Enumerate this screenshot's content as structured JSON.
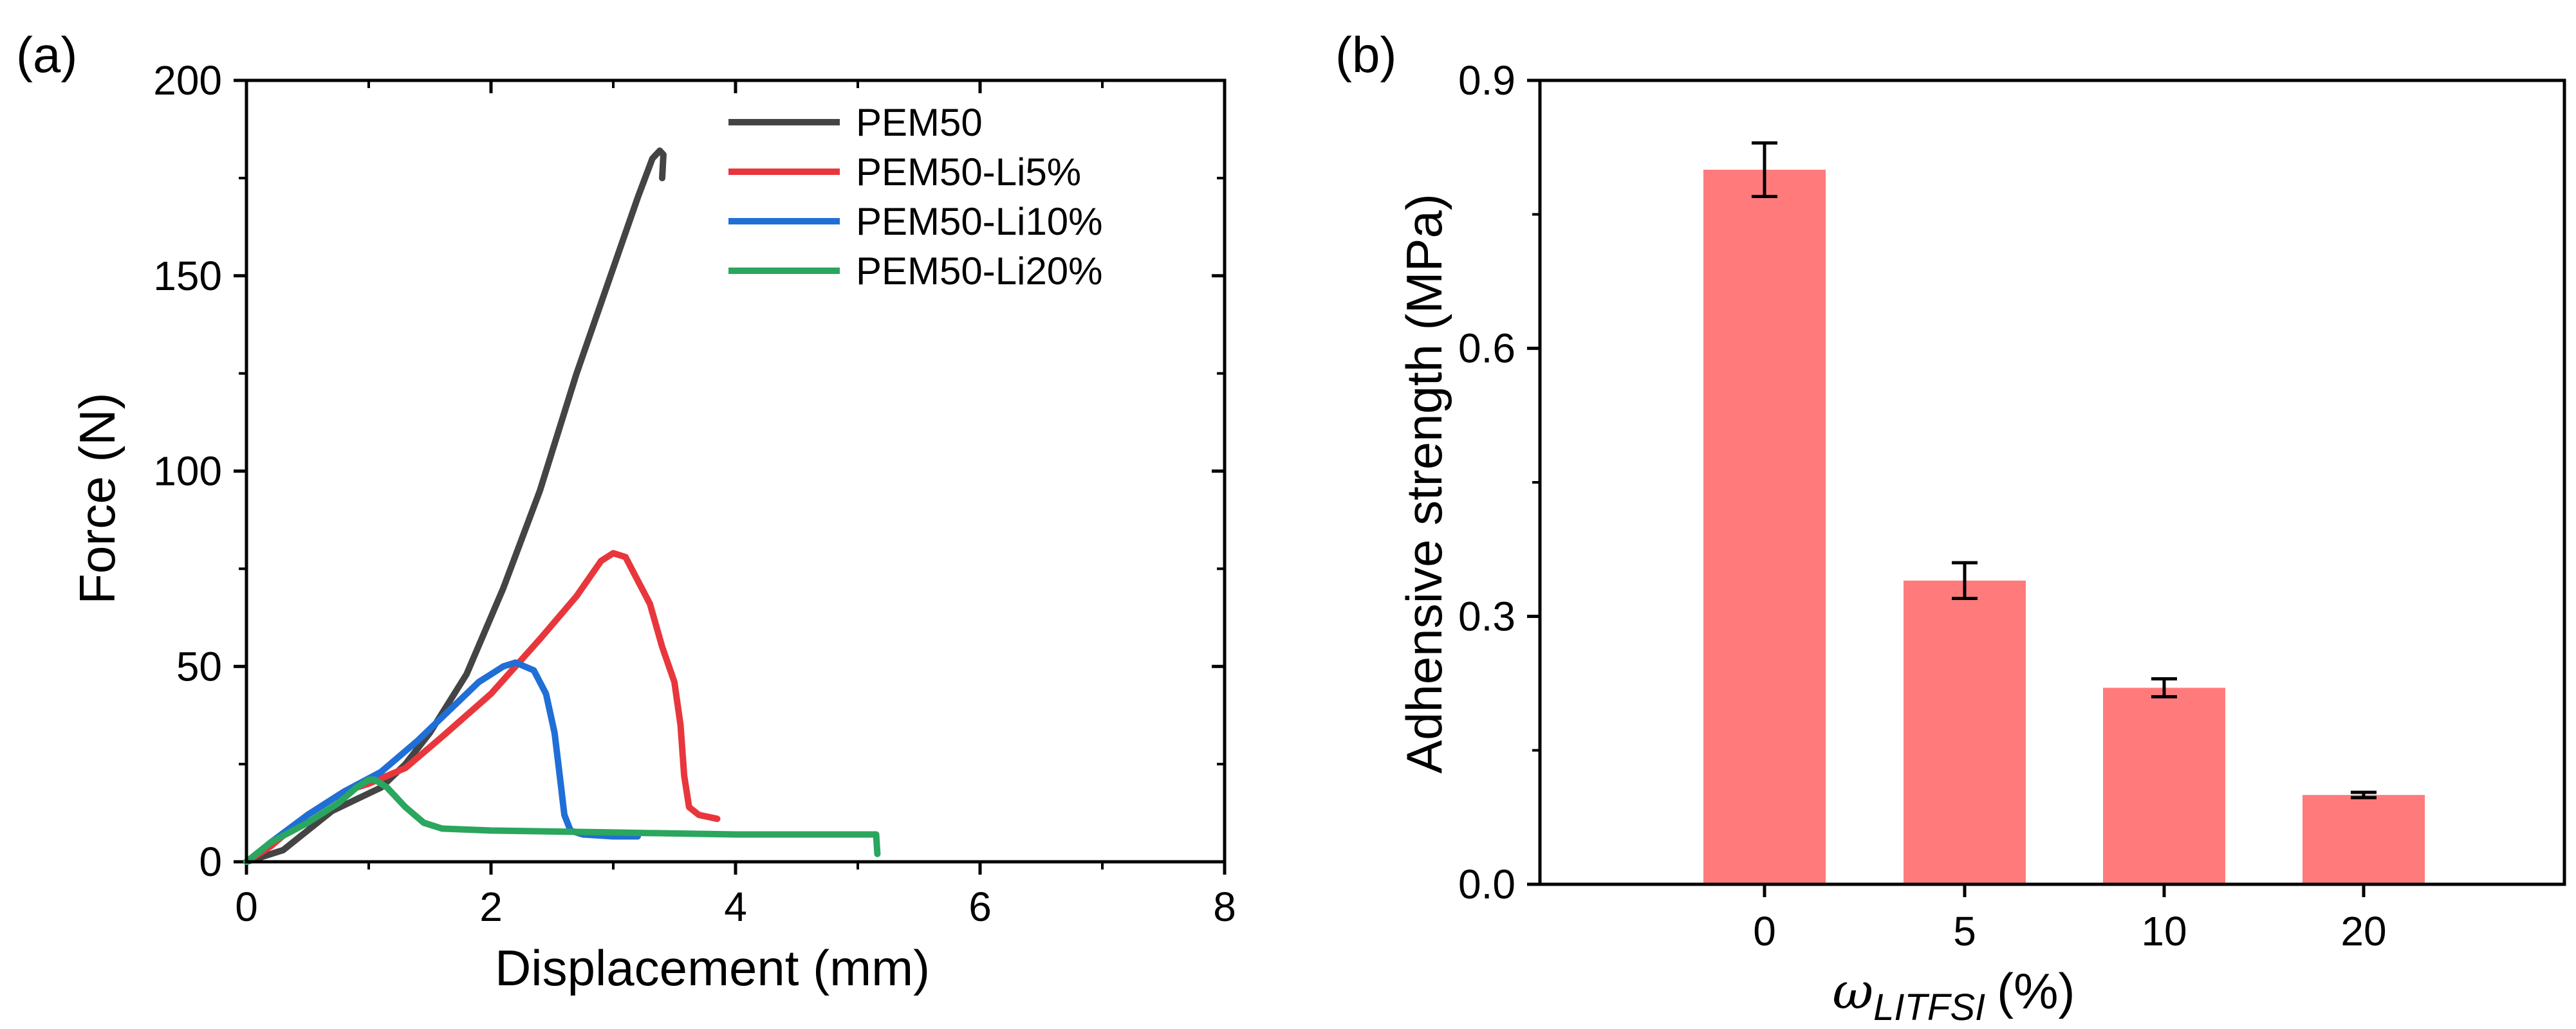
{
  "figure": {
    "background": "#ffffff"
  },
  "chart_data": [
    {
      "panel_label": "(a)",
      "type": "line",
      "title": "",
      "xlabel": "Displacement (mm)",
      "ylabel": "Force (N)",
      "xlim": [
        0,
        8
      ],
      "ylim": [
        0,
        200
      ],
      "xticks": [
        0,
        2,
        4,
        6,
        8
      ],
      "xtick_labels": [
        "0",
        "2",
        "4",
        "6",
        "8"
      ],
      "yticks": [
        0,
        50,
        100,
        150,
        200
      ],
      "ytick_labels": [
        "0",
        "50",
        "100",
        "150",
        "200"
      ],
      "grid": false,
      "legend_position": "top-center",
      "series": [
        {
          "name": "PEM50",
          "color": "#444444",
          "points": [
            [
              0,
              0
            ],
            [
              0.3,
              3
            ],
            [
              0.5,
              8
            ],
            [
              0.7,
              13
            ],
            [
              0.9,
              16
            ],
            [
              1.1,
              19
            ],
            [
              1.3,
              25
            ],
            [
              1.5,
              33
            ],
            [
              1.8,
              48
            ],
            [
              2.1,
              70
            ],
            [
              2.4,
              95
            ],
            [
              2.7,
              125
            ],
            [
              3.0,
              152
            ],
            [
              3.2,
              170
            ],
            [
              3.32,
              180
            ],
            [
              3.38,
              182
            ],
            [
              3.41,
              181
            ],
            [
              3.4,
              175
            ]
          ]
        },
        {
          "name": "PEM50-Li5%",
          "color": "#e8373c",
          "points": [
            [
              0,
              0
            ],
            [
              0.2,
              4
            ],
            [
              0.5,
              12
            ],
            [
              0.8,
              18
            ],
            [
              1.0,
              20
            ],
            [
              1.3,
              24
            ],
            [
              1.6,
              32
            ],
            [
              2.0,
              43
            ],
            [
              2.4,
              57
            ],
            [
              2.7,
              68
            ],
            [
              2.9,
              77
            ],
            [
              3.0,
              79
            ],
            [
              3.1,
              78
            ],
            [
              3.2,
              72
            ],
            [
              3.3,
              66
            ],
            [
              3.4,
              55
            ],
            [
              3.5,
              46
            ],
            [
              3.55,
              35
            ],
            [
              3.58,
              22
            ],
            [
              3.62,
              14
            ],
            [
              3.7,
              12
            ],
            [
              3.85,
              11
            ]
          ]
        },
        {
          "name": "PEM50-Li10%",
          "color": "#1f6fd6",
          "points": [
            [
              0,
              0
            ],
            [
              0.2,
              5
            ],
            [
              0.5,
              12
            ],
            [
              0.8,
              18
            ],
            [
              1.1,
              23
            ],
            [
              1.4,
              31
            ],
            [
              1.7,
              40
            ],
            [
              1.9,
              46
            ],
            [
              2.1,
              50
            ],
            [
              2.2,
              51
            ],
            [
              2.35,
              49
            ],
            [
              2.45,
              43
            ],
            [
              2.52,
              33
            ],
            [
              2.57,
              20
            ],
            [
              2.6,
              12
            ],
            [
              2.65,
              8
            ],
            [
              2.75,
              7
            ],
            [
              3.0,
              6.5
            ],
            [
              3.2,
              6.5
            ]
          ]
        },
        {
          "name": "PEM50-Li20%",
          "color": "#2aa65e",
          "points": [
            [
              0,
              0
            ],
            [
              0.2,
              5
            ],
            [
              0.5,
              10
            ],
            [
              0.75,
              15
            ],
            [
              0.9,
              19
            ],
            [
              1.0,
              21
            ],
            [
              1.05,
              21
            ],
            [
              1.15,
              19
            ],
            [
              1.3,
              14
            ],
            [
              1.45,
              10
            ],
            [
              1.6,
              8.5
            ],
            [
              2.0,
              8
            ],
            [
              3.0,
              7.5
            ],
            [
              4.0,
              7
            ],
            [
              5.0,
              7
            ],
            [
              5.15,
              7
            ],
            [
              5.16,
              2
            ]
          ]
        }
      ]
    },
    {
      "panel_label": "(b)",
      "type": "bar",
      "title": "",
      "xlabel_symbol": "ω",
      "xlabel_subscript": "LITFSI",
      "xlabel_suffix": "(%)",
      "ylabel": "Adhensive strength (MPa)",
      "ylim": [
        0,
        0.9
      ],
      "yticks": [
        0,
        0.3,
        0.6,
        0.9
      ],
      "ytick_labels": [
        "0.0",
        "0.3",
        "0.6",
        "0.9"
      ],
      "grid": false,
      "bar_color": "#ff7b7b",
      "categories": [
        "0",
        "5",
        "10",
        "20"
      ],
      "values": [
        0.8,
        0.34,
        0.22,
        0.1
      ],
      "errors": [
        0.03,
        0.02,
        0.01,
        0.003
      ]
    }
  ]
}
